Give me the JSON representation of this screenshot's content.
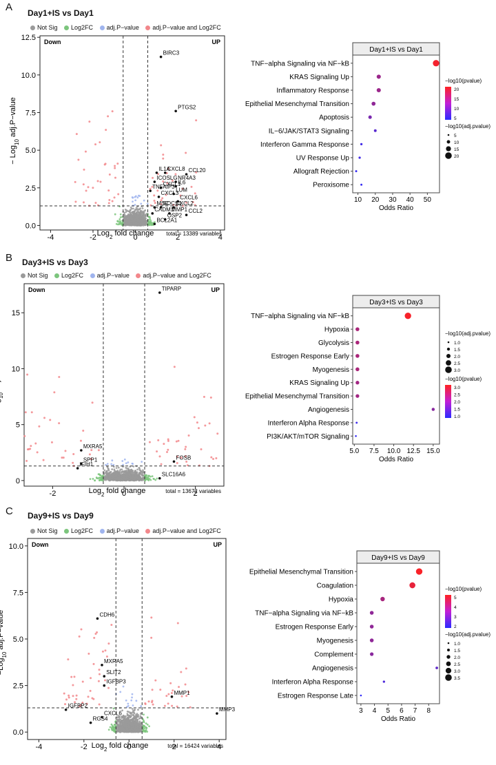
{
  "colors": {
    "notsig": "#9a9a9a",
    "log2fc": "#7cc57d",
    "padj": "#9fb4ee",
    "both": "#f2878b",
    "enrich_low": "#2b2bff",
    "enrich_high": "#ff2222"
  },
  "panels": [
    {
      "letter": "A",
      "title": "Day1+IS vs Day1",
      "legend": [
        "Not Sig",
        "Log2FC",
        "adj.P−value",
        "adj.P−value and Log2FC"
      ],
      "total": "total = 13389 variables",
      "volcano": {
        "type": "scatter",
        "xlabel_main": "Log",
        "xlabel_sub": "2",
        "xlabel_rest": " fold change",
        "ylabel_main": "− Log",
        "ylabel_sub": "10",
        "ylabel_rest": " adj.P−value",
        "xlim": [
          -4.5,
          4.2
        ],
        "ylim": [
          -0.3,
          12.6
        ],
        "xticks": [
          -4,
          -2,
          0,
          2,
          4
        ],
        "yticks": [
          0.0,
          2.5,
          5.0,
          7.5,
          10.0,
          12.5
        ],
        "ytick_labels": [
          "0.0",
          "2.5",
          "5.0",
          "7.5",
          "10.0",
          "12.5"
        ],
        "fc_cut": 0.58,
        "p_cut": 1.3,
        "down_label": "Down",
        "up_label": "UP",
        "genes": [
          {
            "name": "BIRC3",
            "x": 1.2,
            "y": 11.2
          },
          {
            "name": "PTGS2",
            "x": 1.9,
            "y": 7.6
          },
          {
            "name": "IL1A",
            "x": 1.0,
            "y": 3.5
          },
          {
            "name": "CXCL8",
            "x": 1.4,
            "y": 3.5
          },
          {
            "name": "CCL20",
            "x": 2.4,
            "y": 3.4
          },
          {
            "name": "NR4A3",
            "x": 1.9,
            "y": 2.9
          },
          {
            "name": "ICOSLG",
            "x": 0.9,
            "y": 2.9
          },
          {
            "name": "IL6",
            "x": 1.9,
            "y": 2.6
          },
          {
            "name": "CXCL1",
            "x": 1.2,
            "y": 2.5
          },
          {
            "name": "TNFAIP3",
            "x": 0.7,
            "y": 2.3
          },
          {
            "name": "LUM",
            "x": 1.8,
            "y": 2.1
          },
          {
            "name": "CXCL3",
            "x": 1.1,
            "y": 1.9
          },
          {
            "name": "CXCL6",
            "x": 2.0,
            "y": 1.6
          },
          {
            "name": "MSC",
            "x": 0.9,
            "y": 1.2
          },
          {
            "name": "SOCS1",
            "x": 1.2,
            "y": 1.2
          },
          {
            "name": "CXCL2",
            "x": 1.8,
            "y": 1.2
          },
          {
            "name": "CADM1",
            "x": 0.8,
            "y": 0.8
          },
          {
            "name": "MMP1",
            "x": 1.6,
            "y": 0.8
          },
          {
            "name": "CCL2",
            "x": 2.4,
            "y": 0.7
          },
          {
            "name": "OSP2",
            "x": 1.4,
            "y": 0.4
          },
          {
            "name": "BCL2A1",
            "x": 0.9,
            "y": 0.1
          }
        ]
      },
      "enrichment": {
        "type": "scatter",
        "title": "Day1+IS vs Day1",
        "xlabel": "Odds Ratio",
        "xlim": [
          7,
          57
        ],
        "xticks": [
          10,
          20,
          30,
          40,
          50
        ],
        "terms": [
          "TNF−alpha Signaling via NF−kB",
          "KRAS Signaling Up",
          "Inflammatory Response",
          "Epithelial Mesenchymal Transition",
          "Apoptosis",
          "IL−6/JAK/STAT3 Signaling",
          "Interferon Gamma Response",
          "UV Response Up",
          "Allograft Rejection",
          "Peroxisome"
        ],
        "odds": [
          55,
          22,
          22,
          19,
          17,
          20,
          12,
          11,
          9,
          12
        ],
        "neglog_p": [
          21,
          13,
          13,
          12,
          10,
          7,
          5,
          5,
          4,
          4
        ],
        "neglog_padj": [
          20,
          11,
          11,
          10,
          8,
          5,
          3,
          3,
          2,
          2
        ],
        "color_legend_title": "−log10(pvalue)",
        "color_ticks": [
          "20",
          "15",
          "10",
          "5"
        ],
        "color_range": [
          3,
          22
        ],
        "size_legend_title": "−log10(adj.pvalue)",
        "size_ticks": [
          "5",
          "10",
          "15",
          "20"
        ],
        "size_range": [
          1,
          21
        ],
        "legend_order": "color-first"
      }
    },
    {
      "letter": "B",
      "title": "Day3+IS vs Day3",
      "legend": [
        "Not Sig",
        "Log2FC",
        "adj.P−value",
        "adj.P−value and Log2FC"
      ],
      "total": "total = 13672 variables",
      "volcano": {
        "type": "scatter",
        "xlabel_main": "Log",
        "xlabel_sub": "2",
        "xlabel_rest": " fold change",
        "ylabel_main": "− Log",
        "ylabel_sub": "10",
        "ylabel_rest": " adj.P−value",
        "xlim": [
          -2.8,
          2.8
        ],
        "ylim": [
          -0.5,
          17.6
        ],
        "xticks": [
          -2,
          0,
          2
        ],
        "yticks": [
          0,
          5,
          10,
          15
        ],
        "ytick_labels": [
          "0",
          "5",
          "10",
          "15"
        ],
        "fc_cut": 0.58,
        "p_cut": 1.3,
        "down_label": "Down",
        "up_label": "UP",
        "genes": [
          {
            "name": "TIPARP",
            "x": 1.0,
            "y": 16.8
          },
          {
            "name": "MXRA5",
            "x": -1.2,
            "y": 2.7
          },
          {
            "name": "FOSB",
            "x": 1.4,
            "y": 1.7
          },
          {
            "name": "SPP1",
            "x": -1.2,
            "y": 1.5
          },
          {
            "name": "IFIH1",
            "x": -1.3,
            "y": 1.1
          },
          {
            "name": "SLC16A6",
            "x": 1.0,
            "y": 0.2
          }
        ]
      },
      "enrichment": {
        "type": "scatter",
        "title": "Day3+IS vs Day3",
        "xlabel": "Odds Ratio",
        "xlim": [
          4.8,
          15.8
        ],
        "xticks": [
          5.0,
          7.5,
          10.0,
          12.5,
          15.0
        ],
        "xtick_labels": [
          "5.0",
          "7.5",
          "10.0",
          "12.5",
          "15.0"
        ],
        "terms": [
          "TNF−alpha Signaling via NF−kB",
          "Hypoxia",
          "Glycolysis",
          "Estrogen Response Early",
          "Myogenesis",
          "KRAS Signaling Up",
          "Epithelial Mesenchymal Transition",
          "Angiogenesis",
          "Interferon Alpha Response",
          "PI3K/AKT/mTOR  Signaling"
        ],
        "odds": [
          11.8,
          5.4,
          5.4,
          5.4,
          5.4,
          5.4,
          5.4,
          15.0,
          5.3,
          5.2
        ],
        "neglog_p": [
          3.2,
          2.3,
          2.3,
          2.3,
          2.3,
          2.2,
          2.2,
          1.9,
          1.0,
          0.9
        ],
        "neglog_padj": [
          3.0,
          1.6,
          1.6,
          1.6,
          1.6,
          1.5,
          1.5,
          1.2,
          0.6,
          0.5
        ],
        "color_legend_title": "−log10(pvalue)",
        "color_ticks": [
          "3.0",
          "2.5",
          "2.0",
          "1.5",
          "1.0"
        ],
        "color_range": [
          0.8,
          3.3
        ],
        "size_legend_title": "−log10(adj.pvalue)",
        "size_ticks": [
          "1.0",
          "1.5",
          "2.0",
          "2.5",
          "3.0"
        ],
        "size_range": [
          0.5,
          3.1
        ],
        "legend_order": "size-first"
      }
    },
    {
      "letter": "C",
      "title": "Day9+IS vs Day9",
      "legend": [
        "Not Sig",
        "Log2FC",
        "adj.P−value",
        "adj.P−value and Log2FC"
      ],
      "total": "total = 16424 variables",
      "volcano": {
        "type": "scatter",
        "xlabel_main": "Log",
        "xlabel_sub": "2",
        "xlabel_rest": " fold change",
        "ylabel_main": "−Log",
        "ylabel_sub": "10",
        "ylabel_rest": " adj.P−value",
        "xlim": [
          -4.5,
          4.3
        ],
        "ylim": [
          -0.4,
          10.4
        ],
        "xticks": [
          -4,
          -2,
          0,
          2,
          4
        ],
        "yticks": [
          0.0,
          2.5,
          5.0,
          7.5,
          10.0
        ],
        "ytick_labels": [
          "0.0",
          "2.5",
          "5.0",
          "7.5",
          "10.0"
        ],
        "fc_cut": 0.58,
        "p_cut": 1.3,
        "down_label": "Down",
        "up_label": "UP",
        "genes": [
          {
            "name": "CDH6",
            "x": -1.4,
            "y": 6.1
          },
          {
            "name": "MXRA5",
            "x": -1.2,
            "y": 3.6
          },
          {
            "name": "SLIT2",
            "x": -1.1,
            "y": 3.0
          },
          {
            "name": "IGFBP3",
            "x": -1.1,
            "y": 2.5
          },
          {
            "name": "MMP1",
            "x": 1.9,
            "y": 1.9
          },
          {
            "name": "IGFBP2",
            "x": -2.8,
            "y": 1.2
          },
          {
            "name": "MMP3",
            "x": 3.9,
            "y": 1.0
          },
          {
            "name": "CXCL6",
            "x": -1.2,
            "y": 0.8
          },
          {
            "name": "RGS4",
            "x": -1.7,
            "y": 0.5
          }
        ]
      },
      "enrichment": {
        "type": "scatter",
        "title": "Day9+IS vs Day9",
        "xlabel": "Odds Ratio",
        "xlim": [
          2.7,
          8.8
        ],
        "xticks": [
          3,
          4,
          5,
          6,
          7,
          8
        ],
        "terms": [
          "Epithelial Mesenchymal Transition",
          "Coagulation",
          "Hypoxia",
          "TNF−alpha Signaling via NF−kB",
          "Estrogen Response Early",
          "Myogenesis",
          "Complement",
          "Angiogenesis",
          "Interferon Alpha Response",
          "Estrogen Response Late"
        ],
        "odds": [
          7.3,
          6.8,
          4.6,
          3.8,
          3.8,
          3.8,
          3.8,
          8.6,
          4.7,
          3.0
        ],
        "neglog_p": [
          5.0,
          4.7,
          3.6,
          3.2,
          3.2,
          3.2,
          3.1,
          2.4,
          2.1,
          1.6
        ],
        "neglog_padj": [
          3.6,
          3.3,
          2.4,
          2.0,
          2.0,
          2.0,
          1.9,
          1.3,
          1.1,
          0.8
        ],
        "color_legend_title": "−log10(pvalue)",
        "color_ticks": [
          "5",
          "4",
          "3",
          "2"
        ],
        "color_range": [
          1.5,
          5.1
        ],
        "size_legend_title": "−log10(adj.pvalue)",
        "size_ticks": [
          "1.0",
          "1.5",
          "2.0",
          "2.5",
          "3.0",
          "3.5"
        ],
        "size_range": [
          0.8,
          3.7
        ],
        "legend_order": "color-first"
      }
    }
  ]
}
